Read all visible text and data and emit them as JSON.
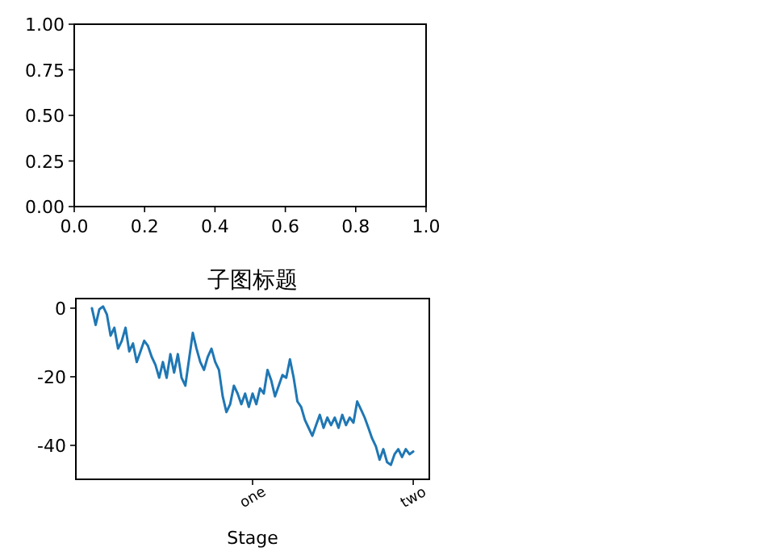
{
  "chart_data": [
    {
      "type": "line",
      "xlim": [
        0,
        1
      ],
      "ylim": [
        0,
        1
      ],
      "xticks": [
        {
          "value": 0,
          "label": "0.0"
        },
        {
          "value": 0.2,
          "label": "0.2"
        },
        {
          "value": 0.4,
          "label": "0.4"
        },
        {
          "value": 0.6,
          "label": "0.6"
        },
        {
          "value": 0.8,
          "label": "0.8"
        },
        {
          "value": 1,
          "label": "1.0"
        }
      ],
      "yticks": [
        {
          "value": 0,
          "label": "0.00"
        },
        {
          "value": 0.25,
          "label": "0.25"
        },
        {
          "value": 0.5,
          "label": "0.50"
        },
        {
          "value": 0.75,
          "label": "0.75"
        },
        {
          "value": 1,
          "label": "1.00"
        }
      ]
    },
    {
      "type": "line",
      "title": "子图标题",
      "xlabel": "Stage",
      "ylim": [
        -49.9,
        2.8
      ],
      "categories": [
        null,
        null,
        null,
        null,
        null,
        null,
        null,
        null,
        null,
        null,
        null,
        null,
        null,
        null,
        null,
        null,
        null,
        null,
        null,
        null,
        null,
        null,
        null,
        null,
        null,
        null,
        null,
        null,
        null,
        null,
        null,
        null,
        null,
        null,
        null,
        null,
        null,
        null,
        null,
        null,
        null,
        null,
        null,
        "one",
        null,
        null,
        null,
        null,
        null,
        null,
        null,
        null,
        null,
        null,
        null,
        null,
        null,
        null,
        null,
        null,
        null,
        null,
        null,
        null,
        null,
        null,
        null,
        null,
        null,
        null,
        null,
        null,
        null,
        null,
        null,
        null,
        null,
        null,
        null,
        null,
        null,
        null,
        null,
        null,
        null,
        null,
        "two"
      ],
      "yticks": [
        0,
        -20,
        -40
      ],
      "series": [
        {
          "color": "#1f77b4",
          "values": [
            0,
            -4.9,
            -0.3,
            0.5,
            -1.8,
            -8,
            -5.7,
            -11.8,
            -9.5,
            -5.7,
            -12.6,
            -10.3,
            -15.7,
            -12.6,
            -9.5,
            -11,
            -14.2,
            -16.5,
            -20.3,
            -15.7,
            -20.3,
            -13.4,
            -18.8,
            -13.4,
            -20.3,
            -22.6,
            -14.9,
            -7.2,
            -11.8,
            -15.7,
            -18,
            -14.2,
            -11.8,
            -15.7,
            -18,
            -25.7,
            -30.3,
            -28,
            -22.6,
            -24.9,
            -28,
            -24.9,
            -28.8,
            -24.9,
            -28,
            -23.4,
            -24.9,
            -18,
            -21.1,
            -25.7,
            -22.6,
            -19.5,
            -20.3,
            -14.9,
            -20.3,
            -27.2,
            -28.8,
            -32.6,
            -34.9,
            -37.2,
            -34.1,
            -31.1,
            -34.9,
            -31.9,
            -34.1,
            -31.9,
            -34.9,
            -31.1,
            -34.1,
            -31.9,
            -33.4,
            -27.2,
            -29.5,
            -31.9,
            -34.9,
            -38,
            -40.3,
            -44.2,
            -41.1,
            -44.9,
            -45.7,
            -42.6,
            -41.1,
            -43.4,
            -41.1,
            -42.6,
            -41.8
          ]
        }
      ]
    }
  ]
}
